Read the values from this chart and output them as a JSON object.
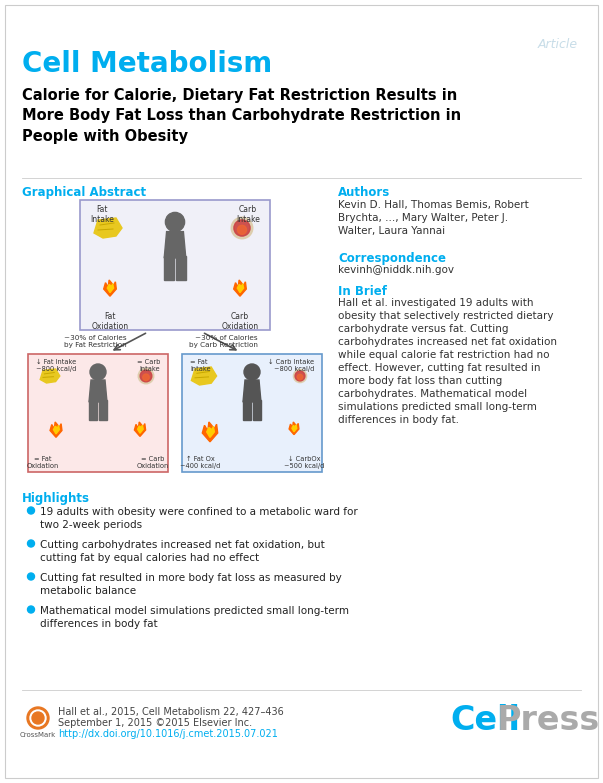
{
  "background_color": "#ffffff",
  "border_color": "#cccccc",
  "journal_name": "Cell Metabolism",
  "journal_color": "#00aeef",
  "article_label": "Article",
  "article_color": "#c8dde8",
  "title": "Calorie for Calorie, Dietary Fat Restriction Results in\nMore Body Fat Loss than Carbohydrate Restriction in\nPeople with Obesity",
  "title_color": "#000000",
  "section_color": "#00aeef",
  "graphical_abstract_label": "Graphical Abstract",
  "authors_label": "Authors",
  "authors_text": "Kevin D. Hall, Thomas Bemis, Robert\nBrychta, ..., Mary Walter, Peter J.\nWalter, Laura Yannai",
  "correspondence_label": "Correspondence",
  "correspondence_text": "kevinh@niddk.nih.gov",
  "in_brief_label": "In Brief",
  "in_brief_text": "Hall et al. investigated 19 adults with\nobesity that selectively restricted dietary\ncarbohydrate versus fat. Cutting\ncarbohydrates increased net fat oxidation\nwhile equal calorie fat restriction had no\neffect. However, cutting fat resulted in\nmore body fat loss than cutting\ncarbohydrates. Mathematical model\nsimulations predicted small long-term\ndifferences in body fat.",
  "highlights_label": "Highlights",
  "highlights": [
    "19 adults with obesity were confined to a metabolic ward for\ntwo 2-week periods",
    "Cutting carbohydrates increased net fat oxidation, but\ncutting fat by equal calories had no effect",
    "Cutting fat resulted in more body fat loss as measured by\nmetabolic balance",
    "Mathematical model simulations predicted small long-term\ndifferences in body fat"
  ],
  "footer_text": "Hall et al., 2015, Cell Metabolism 22, 427–436\nSeptember 1, 2015 ©2015 Elsevier Inc.\nhttp://dx.doi.org/10.1016/j.cmet.2015.07.021",
  "footer_link_color": "#00aeef",
  "cellpress_cell_color": "#00aeef",
  "cellpress_press_color": "#aaaaaa",
  "ga_top_border": "#9999cc",
  "ga_top_bg": "#eeeeee",
  "ga_bl_border": "#cc6666",
  "ga_bl_bg": "#fce8e8",
  "ga_br_border": "#6699cc",
  "ga_br_bg": "#e8f0fc"
}
